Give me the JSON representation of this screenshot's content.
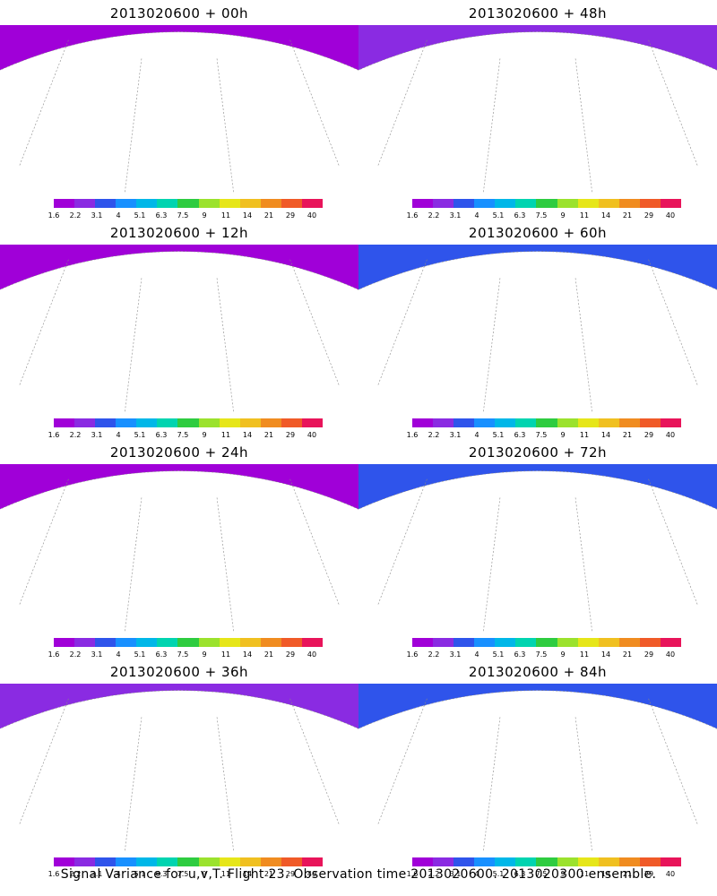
{
  "panels": [
    {
      "title": "2013020600 + 00h",
      "lead": 0
    },
    {
      "title": "2013020600 + 48h",
      "lead": 48
    },
    {
      "title": "2013020600 + 12h",
      "lead": 12
    },
    {
      "title": "2013020600 + 60h",
      "lead": 60
    },
    {
      "title": "2013020600 + 24h",
      "lead": 24
    },
    {
      "title": "2013020600 + 72h",
      "lead": 72
    },
    {
      "title": "2013020600 + 36h",
      "lead": 36
    },
    {
      "title": "2013020600 + 84h",
      "lead": 84
    }
  ],
  "colorbar": {
    "labels": [
      "1.6",
      "2.2",
      "3.1",
      "4",
      "5.1",
      "6.3",
      "7.5",
      "9",
      "11",
      "14",
      "21",
      "29",
      "40"
    ],
    "colors": [
      "#a000d8",
      "#8a2be2",
      "#2f54eb",
      "#1890ff",
      "#00b7e8",
      "#00d4b0",
      "#2ecc40",
      "#9be22d",
      "#e6e619",
      "#f0c020",
      "#f08c20",
      "#f05a28",
      "#e8145a"
    ]
  },
  "footer": "Signal Variance for u,v,T. Flight 23. Observation time 2013020600. 2013020300 ensemble."
}
